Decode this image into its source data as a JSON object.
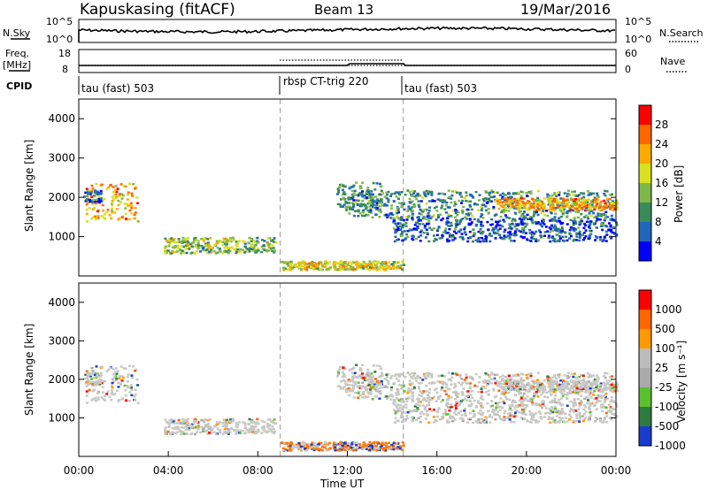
{
  "header": {
    "station": "Kapuskasing (fitACF)",
    "beam": "Beam 13",
    "date": "19/Mar/2016"
  },
  "top_panels": {
    "nsky_label": "N.Sky",
    "nsky_ticks": [
      "10^5",
      "10^0"
    ],
    "nsearch_label": "N.Search",
    "nsearch_ticks": [
      "10^5",
      "10^0"
    ],
    "freq_label": "Freq.",
    "freq_unit": "[MHz]",
    "freq_ticks": [
      "18",
      "8"
    ],
    "nave_label": "Nave",
    "nave_ticks": [
      "60",
      "0"
    ],
    "cpid_label": "CPID"
  },
  "cpid_segments": [
    {
      "label": "tau (fast) 503",
      "start_h": 0,
      "end_h": 9
    },
    {
      "label": "rbsp CT-trig 220",
      "start_h": 9,
      "end_h": 14.5
    },
    {
      "label": "tau (fast) 503",
      "start_h": 14.5,
      "end_h": 24
    }
  ],
  "colors": {
    "power_scale": [
      "#0000ff",
      "#2266bb",
      "#3a8a5a",
      "#7fb84a",
      "#d8e020",
      "#ffaa00",
      "#ff6600",
      "#ff0000"
    ],
    "velocity_scale": [
      "#1a3ccc",
      "#2f7a3f",
      "#5ac030",
      "#aaaaaa",
      "#bbbbbb",
      "#ff9900",
      "#ff6600",
      "#ff0000"
    ],
    "ground_scatter": "#c8c8c4"
  },
  "chart_data": [
    {
      "type": "heatmap",
      "name": "power",
      "ylabel": "Slant Range [km]",
      "yticks": [
        "1000",
        "2000",
        "3000",
        "4000"
      ],
      "ylim": [
        0,
        4500
      ],
      "colorbar_label": "Power [dB]",
      "colorbar_ticks": [
        "4",
        "8",
        "12",
        "16",
        "20",
        "24",
        "28"
      ],
      "segments": [
        {
          "t0": 0.3,
          "t1": 2.6,
          "r0": 1400,
          "r1": 2400,
          "val": 24
        },
        {
          "t0": 0.2,
          "t1": 1.0,
          "r0": 1900,
          "r1": 2200,
          "val": 8
        },
        {
          "t0": 3.8,
          "t1": 8.8,
          "r0": 600,
          "r1": 1000,
          "val": 16
        },
        {
          "t0": 9.0,
          "t1": 14.5,
          "r0": 180,
          "r1": 400,
          "val": 20
        },
        {
          "t0": 11.5,
          "t1": 13.5,
          "r0": 1700,
          "r1": 2400,
          "val": 12
        },
        {
          "t0": 12.0,
          "t1": 23.8,
          "r0": 1500,
          "r1": 2200,
          "val": 12
        },
        {
          "t0": 18.5,
          "t1": 24.0,
          "r0": 1700,
          "r1": 2000,
          "val": 24
        },
        {
          "t0": 14.0,
          "t1": 24.0,
          "r0": 900,
          "r1": 1500,
          "val": 8
        }
      ],
      "vlines_h": [
        9.0,
        14.5
      ]
    },
    {
      "type": "heatmap",
      "name": "velocity",
      "ylabel": "Slant Range [km]",
      "yticks": [
        "1000",
        "2000",
        "3000",
        "4000"
      ],
      "ylim": [
        0,
        4500
      ],
      "xlabel": "Time UT",
      "xticks": [
        "00:00",
        "04:00",
        "08:00",
        "12:00",
        "16:00",
        "20:00",
        "00:00"
      ],
      "xlim": [
        0,
        24
      ],
      "colorbar_label": "Velocity [m s⁻¹]",
      "colorbar_ticks": [
        "1000",
        "500",
        "100",
        "25",
        "-25",
        "-100",
        "-500",
        "-1000"
      ],
      "vlines_h": [
        9.0,
        14.5
      ]
    }
  ]
}
